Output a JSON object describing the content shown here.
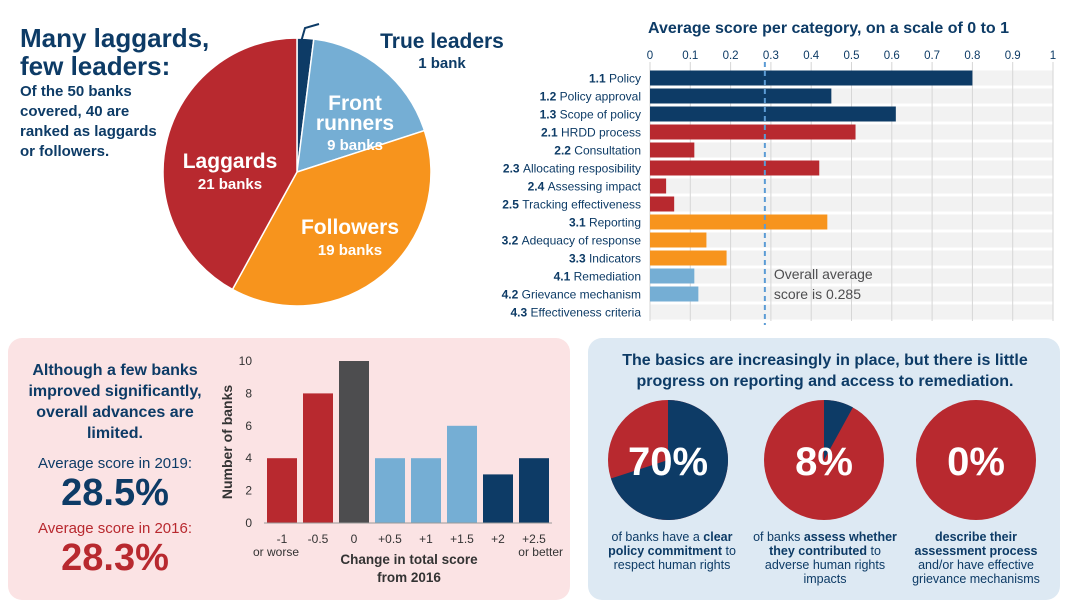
{
  "pie": {
    "headline": "Many laggards, few leaders:",
    "subtitle": "Of the 50 banks covered, 40 are ranked as laggards or followers.",
    "slices": [
      {
        "name": "True leaders",
        "value_label": "1 bank",
        "value": 1,
        "color": "#0d3b66"
      },
      {
        "name": "Front runners",
        "value_label": "9 banks",
        "value": 9,
        "color": "#75aed4"
      },
      {
        "name": "Followers",
        "value_label": "19 banks",
        "value": 19,
        "color": "#f7941d"
      },
      {
        "name": "Laggards",
        "value_label": "21 banks",
        "value": 21,
        "color": "#b8292f"
      }
    ]
  },
  "bars": {
    "title": "Average score per category, on a scale of 0 to 1",
    "ticks": [
      "0",
      "0.1",
      "0.2",
      "0.3",
      "0.4",
      "0.5",
      "0.6",
      "0.7",
      "0.8",
      "0.9",
      "1"
    ],
    "average_note_line1": "Overall average",
    "average_note_line2": "score is 0.285",
    "average": 0.285
  },
  "histogram": {
    "text": "Although a few banks improved significantly, overall advances are limited.",
    "avg_2019_label": "Average score in 2019:",
    "avg_2019_value": "28.5%",
    "avg_2016_label": "Average score in 2016:",
    "avg_2016_value": "28.3%",
    "ylabel": "Number of banks",
    "xlabel_line1": "Change in total score",
    "xlabel_line2": "from 2016"
  },
  "basics": {
    "title": "The basics are increasingly in place, but there is little progress on reporting and access to remediation.",
    "items": [
      {
        "value": "70%",
        "fraction": 0.7,
        "pre": "of banks have a ",
        "bold": "clear policy commitment",
        "post": " to respect human rights"
      },
      {
        "value": "8%",
        "fraction": 0.08,
        "pre": "of banks ",
        "bold": "assess whether they contributed",
        "post": " to adverse human rights impacts"
      },
      {
        "value": "0%",
        "fraction": 0.0,
        "pre": "",
        "bold": "describe their assessment process",
        "post": " and/or have effective grievance mechanisms"
      }
    ]
  },
  "chart_data": [
    {
      "type": "pie",
      "title": "",
      "categories": [
        "True leaders",
        "Front runners",
        "Followers",
        "Laggards"
      ],
      "values": [
        1,
        9,
        19,
        21
      ]
    },
    {
      "type": "bar",
      "orientation": "horizontal",
      "title": "Average score per category, on a scale of 0 to 1",
      "xlim": [
        0,
        1
      ],
      "grid": true,
      "categories": [
        {
          "num": "1.1",
          "name": "Policy",
          "value": 0.8,
          "color": "#0d3b66"
        },
        {
          "num": "1.2",
          "name": "Policy approval",
          "value": 0.45,
          "color": "#0d3b66"
        },
        {
          "num": "1.3",
          "name": "Scope of policy",
          "value": 0.61,
          "color": "#0d3b66"
        },
        {
          "num": "2.1",
          "name": "HRDD process",
          "value": 0.51,
          "color": "#b8292f"
        },
        {
          "num": "2.2",
          "name": "Consultation",
          "value": 0.11,
          "color": "#b8292f"
        },
        {
          "num": "2.3",
          "name": "Allocating resposibility",
          "value": 0.42,
          "color": "#b8292f"
        },
        {
          "num": "2.4",
          "name": "Assessing impact",
          "value": 0.04,
          "color": "#b8292f"
        },
        {
          "num": "2.5",
          "name": "Tracking effectiveness",
          "value": 0.06,
          "color": "#b8292f"
        },
        {
          "num": "3.1",
          "name": "Reporting",
          "value": 0.44,
          "color": "#f7941d"
        },
        {
          "num": "3.2",
          "name": "Adequacy of response",
          "value": 0.14,
          "color": "#f7941d"
        },
        {
          "num": "3.3",
          "name": "Indicators",
          "value": 0.19,
          "color": "#f7941d"
        },
        {
          "num": "4.1",
          "name": "Remediation",
          "value": 0.11,
          "color": "#75aed4"
        },
        {
          "num": "4.2",
          "name": "Grievance mechanism",
          "value": 0.12,
          "color": "#75aed4"
        },
        {
          "num": "4.3",
          "name": "Effectiveness criteria",
          "value": 0.0,
          "color": "#75aed4"
        }
      ],
      "reference_line": 0.285
    },
    {
      "type": "bar",
      "title": "",
      "xlabel": "Change in total score from 2016",
      "ylabel": "Number of banks",
      "ylim": [
        0,
        10
      ],
      "yticks": [
        "0",
        "2",
        "4",
        "6",
        "8",
        "10"
      ],
      "categories": [
        {
          "line1": "-1",
          "line2": "or worse",
          "value": 4,
          "color": "#b8292f"
        },
        {
          "line1": "-0.5",
          "line2": "",
          "value": 8,
          "color": "#b8292f"
        },
        {
          "line1": "0",
          "line2": "",
          "value": 10,
          "color": "#4d4d4f"
        },
        {
          "line1": "+0.5",
          "line2": "",
          "value": 4,
          "color": "#75aed4"
        },
        {
          "line1": "+1",
          "line2": "",
          "value": 4,
          "color": "#75aed4"
        },
        {
          "line1": "+1.5",
          "line2": "",
          "value": 6,
          "color": "#75aed4"
        },
        {
          "line1": "+2",
          "line2": "",
          "value": 3,
          "color": "#0d3b66"
        },
        {
          "line1": "+2.5",
          "line2": "or better",
          "value": 4,
          "color": "#0d3b66"
        }
      ]
    }
  ]
}
